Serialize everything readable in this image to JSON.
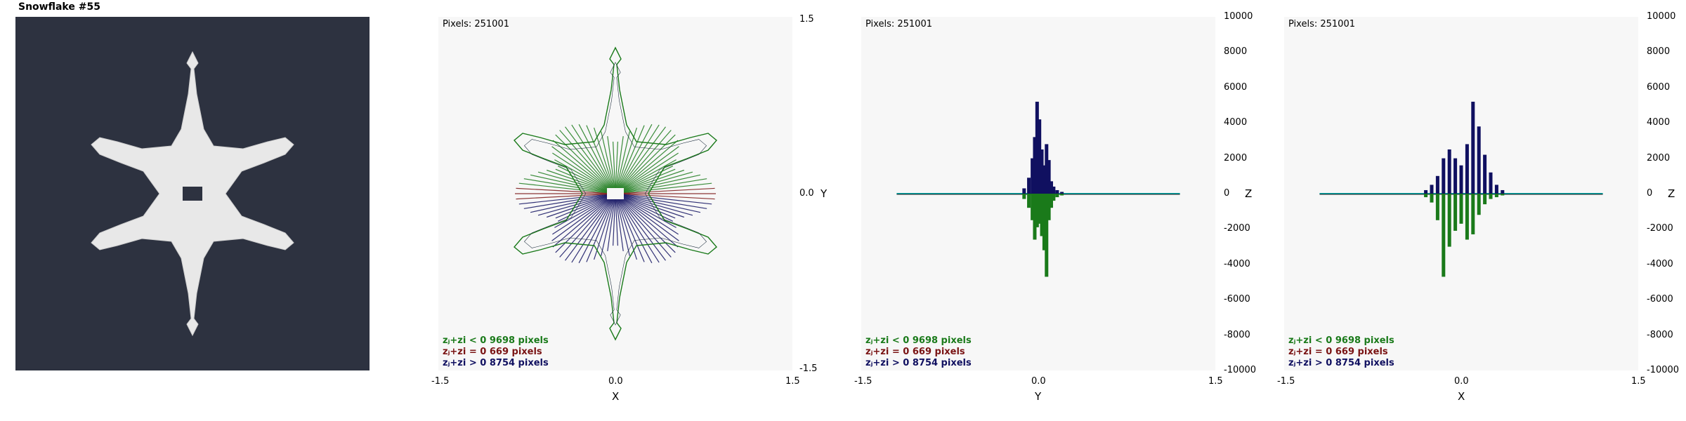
{
  "title": "Snowflake #55",
  "colors": {
    "background": "#2d3240",
    "fractal": "#e8e8e8",
    "panel": "#f7f7f7",
    "negative": "#1a7a1a",
    "zero": "#7a1414",
    "positive": "#101060",
    "axis": "#00a0a0"
  },
  "chart_data": [
    {
      "type": "scatter",
      "pixels_label": "Pixels: 251001",
      "x": {
        "ticks": [
          "-1.5",
          "0.0",
          "1.5"
        ],
        "label": "X",
        "range": [
          -1.5,
          1.5
        ]
      },
      "y": {
        "ticks": [
          "1.5",
          "0.0",
          "-1.5"
        ],
        "label": "Y",
        "range": [
          -1.5,
          1.5
        ]
      },
      "legend": [
        {
          "text": "zⱼ+zi < 0  9698 pixels",
          "color": "#1a7a1a"
        },
        {
          "text": "zⱼ+zi = 0  669 pixels",
          "color": "#7a1414"
        },
        {
          "text": "zⱼ+zi > 0  8754 pixels",
          "color": "#101060"
        }
      ]
    },
    {
      "type": "bar",
      "pixels_label": "Pixels: 251001",
      "x": {
        "ticks": [
          "-1.5",
          "0.0",
          "1.5"
        ],
        "label": "Y",
        "range": [
          -1.5,
          1.5
        ]
      },
      "y": {
        "ticks": [
          "10000",
          "8000",
          "6000",
          "4000",
          "2000",
          "0",
          "-2000",
          "-4000",
          "-6000",
          "-8000",
          "-10000"
        ],
        "label": "Z",
        "range": [
          -10000,
          10000
        ]
      },
      "series": [
        {
          "name": "positive",
          "x": [
            -0.12,
            -0.08,
            -0.05,
            -0.03,
            -0.01,
            0.01,
            0.03,
            0.05,
            0.07,
            0.09,
            0.11,
            0.13,
            0.16,
            0.2
          ],
          "values": [
            300,
            900,
            2000,
            3200,
            5200,
            4200,
            2500,
            1600,
            2800,
            1900,
            700,
            400,
            200,
            100
          ]
        },
        {
          "name": "negative",
          "x": [
            -0.12,
            -0.08,
            -0.05,
            -0.03,
            -0.01,
            0.01,
            0.03,
            0.05,
            0.07,
            0.09,
            0.11,
            0.13,
            0.16,
            0.2
          ],
          "values": [
            -300,
            -800,
            -1500,
            -2600,
            -1900,
            -1700,
            -2400,
            -3200,
            -4700,
            -1500,
            -800,
            -400,
            -200,
            -100
          ]
        }
      ]
    },
    {
      "type": "bar",
      "pixels_label": "Pixels: 251001",
      "x": {
        "ticks": [
          "-1.5",
          "0.0",
          "1.5"
        ],
        "label": "X",
        "range": [
          -1.5,
          1.5
        ]
      },
      "y": {
        "ticks": [
          "10000",
          "8000",
          "6000",
          "4000",
          "2000",
          "0",
          "-2000",
          "-4000",
          "-6000",
          "-8000",
          "-10000"
        ],
        "label": "Z",
        "range": [
          -10000,
          10000
        ]
      },
      "series": [
        {
          "name": "positive",
          "x": [
            -0.3,
            -0.25,
            -0.2,
            -0.15,
            -0.1,
            -0.05,
            0.0,
            0.05,
            0.1,
            0.15,
            0.2,
            0.25,
            0.3,
            0.35
          ],
          "values": [
            200,
            500,
            1000,
            2000,
            2500,
            2000,
            1600,
            2800,
            5200,
            3800,
            2200,
            1200,
            500,
            200
          ]
        },
        {
          "name": "negative",
          "x": [
            -0.3,
            -0.25,
            -0.2,
            -0.15,
            -0.1,
            -0.05,
            0.0,
            0.05,
            0.1,
            0.15,
            0.2,
            0.25,
            0.3,
            0.35
          ],
          "values": [
            -200,
            -500,
            -1500,
            -4700,
            -3000,
            -2100,
            -1700,
            -2600,
            -2300,
            -1200,
            -600,
            -300,
            -200,
            -100
          ]
        }
      ]
    }
  ]
}
